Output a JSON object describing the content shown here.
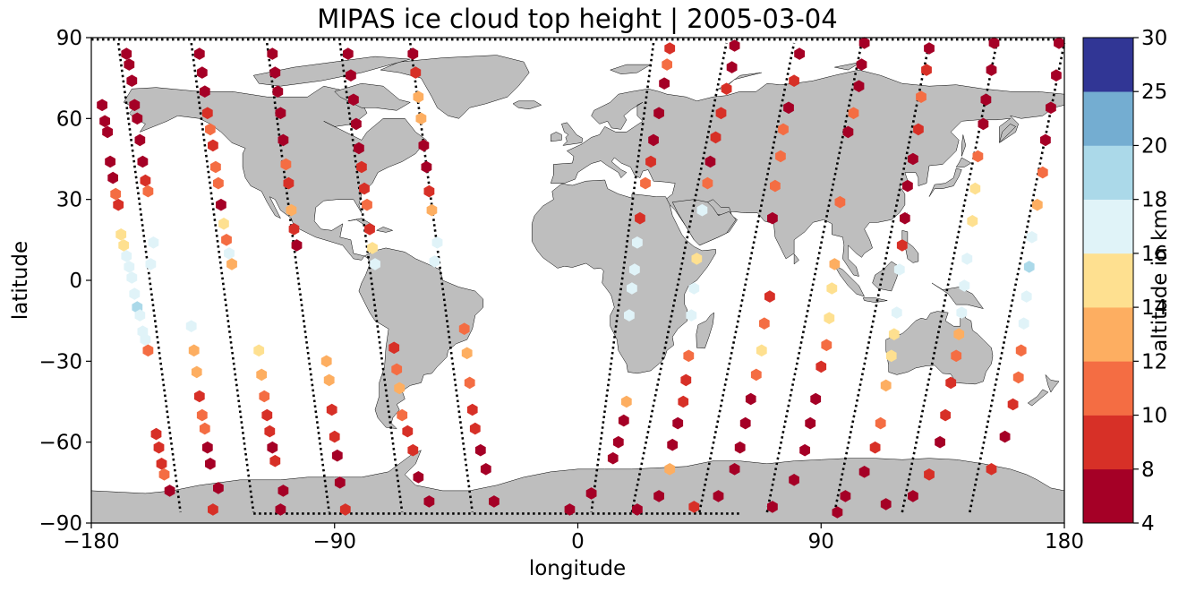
{
  "chart_data": {
    "type": "scatter",
    "title": "MIPAS ice cloud top height | 2005-03-04",
    "xlabel": "longitude",
    "ylabel": "latitude",
    "xlim": [
      -180,
      180
    ],
    "ylim": [
      -90,
      90
    ],
    "xticks": [
      -180,
      -90,
      0,
      90,
      180
    ],
    "xtick_labels": [
      "−180",
      "−90",
      "0",
      "90",
      "180"
    ],
    "yticks": [
      -90,
      -60,
      -30,
      0,
      30,
      60,
      90
    ],
    "ytick_labels": [
      "−90",
      "−60",
      "−30",
      "0",
      "30",
      "60",
      "90"
    ],
    "grid": false,
    "land_color": "#bebebe",
    "ocean_color": "#ffffff",
    "marker": "hexagon",
    "colorbar": {
      "label": "altitude in km",
      "bounds": [
        4,
        8,
        10,
        12,
        14,
        16,
        18,
        20,
        25,
        30
      ],
      "tick_labels": [
        "4",
        "8",
        "10",
        "12",
        "14",
        "16",
        "18",
        "20",
        "25",
        "30"
      ],
      "colors": [
        "#a50026",
        "#d73027",
        "#f46d43",
        "#fdae61",
        "#fee090",
        "#e0f3f8",
        "#abd9e9",
        "#74add1",
        "#313695"
      ]
    },
    "descending_tracks": [
      {
        "lon_north": -170,
        "lon_south": -147
      },
      {
        "lon_north": -143,
        "lon_south": -120
      },
      {
        "lon_north": -115,
        "lon_south": -92
      },
      {
        "lon_north": -88,
        "lon_south": -65
      },
      {
        "lon_north": -62,
        "lon_south": -39
      },
      {
        "lon_north": 28,
        "lon_south": 5
      }
    ],
    "ascending_tracks": [
      {
        "lon_south": 20,
        "lon_north": 55
      },
      {
        "lon_south": 45,
        "lon_north": 80
      },
      {
        "lon_south": 70,
        "lon_north": 105
      },
      {
        "lon_south": 95,
        "lon_north": 130
      },
      {
        "lon_south": 120,
        "lon_north": 155
      },
      {
        "lon_south": 145,
        "lon_north": 180
      }
    ],
    "points": [
      {
        "lon": -176,
        "lat": 65,
        "alt": 6
      },
      {
        "lon": -175,
        "lat": 59,
        "alt": 6
      },
      {
        "lon": -174,
        "lat": 55,
        "alt": 7
      },
      {
        "lon": -173,
        "lat": 44,
        "alt": 6
      },
      {
        "lon": -172,
        "lat": 38,
        "alt": 6
      },
      {
        "lon": -171,
        "lat": 32,
        "alt": 11
      },
      {
        "lon": -170,
        "lat": 28,
        "alt": 9
      },
      {
        "lon": -169,
        "lat": 17,
        "alt": 15
      },
      {
        "lon": -168,
        "lat": 13,
        "alt": 15
      },
      {
        "lon": -167,
        "lat": 9,
        "alt": 17
      },
      {
        "lon": -166,
        "lat": 5,
        "alt": 17
      },
      {
        "lon": -165,
        "lat": 1,
        "alt": 17
      },
      {
        "lon": -164,
        "lat": -5,
        "alt": 17
      },
      {
        "lon": -163,
        "lat": -10,
        "alt": 19
      },
      {
        "lon": -162,
        "lat": -13,
        "alt": 17
      },
      {
        "lon": -161,
        "lat": -19,
        "alt": 17
      },
      {
        "lon": -160,
        "lat": -22,
        "alt": 17
      },
      {
        "lon": -159,
        "lat": -26,
        "alt": 11
      },
      {
        "lon": -156,
        "lat": -57,
        "alt": 9
      },
      {
        "lon": -155,
        "lat": -62,
        "alt": 9
      },
      {
        "lon": -154,
        "lat": -68,
        "alt": 9
      },
      {
        "lon": -153,
        "lat": -72,
        "alt": 11
      },
      {
        "lon": -151,
        "lat": -78,
        "alt": 6
      },
      {
        "lon": -167,
        "lat": 84,
        "alt": 6
      },
      {
        "lon": -166,
        "lat": 80,
        "alt": 6
      },
      {
        "lon": -165,
        "lat": 74,
        "alt": 6
      },
      {
        "lon": -164,
        "lat": 65,
        "alt": 6
      },
      {
        "lon": -163,
        "lat": 60,
        "alt": 6
      },
      {
        "lon": -162,
        "lat": 52,
        "alt": 6
      },
      {
        "lon": -161,
        "lat": 44,
        "alt": 6
      },
      {
        "lon": -160,
        "lat": 37,
        "alt": 9
      },
      {
        "lon": -159,
        "lat": 33,
        "alt": 11
      },
      {
        "lon": -157,
        "lat": 14,
        "alt": 17
      },
      {
        "lon": -158,
        "lat": 6,
        "alt": 17
      },
      {
        "lon": -143,
        "lat": -17,
        "alt": 17
      },
      {
        "lon": -142,
        "lat": -26,
        "alt": 13
      },
      {
        "lon": -141,
        "lat": -34,
        "alt": 13
      },
      {
        "lon": -140,
        "lat": -43,
        "alt": 9
      },
      {
        "lon": -139,
        "lat": -50,
        "alt": 11
      },
      {
        "lon": -138,
        "lat": -55,
        "alt": 11
      },
      {
        "lon": -137,
        "lat": -62,
        "alt": 6
      },
      {
        "lon": -136,
        "lat": -68,
        "alt": 6
      },
      {
        "lon": -133,
        "lat": -77,
        "alt": 6
      },
      {
        "lon": -135,
        "lat": -85,
        "alt": 9
      },
      {
        "lon": -140,
        "lat": 84,
        "alt": 6
      },
      {
        "lon": -139,
        "lat": 77,
        "alt": 6
      },
      {
        "lon": -138,
        "lat": 70,
        "alt": 6
      },
      {
        "lon": -137,
        "lat": 62,
        "alt": 9
      },
      {
        "lon": -136,
        "lat": 56,
        "alt": 11
      },
      {
        "lon": -135,
        "lat": 50,
        "alt": 9
      },
      {
        "lon": -134,
        "lat": 42,
        "alt": 11
      },
      {
        "lon": -133,
        "lat": 36,
        "alt": 11
      },
      {
        "lon": -132,
        "lat": 28,
        "alt": 6
      },
      {
        "lon": -131,
        "lat": 21,
        "alt": 15
      },
      {
        "lon": -130,
        "lat": 15,
        "alt": 11
      },
      {
        "lon": -129,
        "lat": 10,
        "alt": 17
      },
      {
        "lon": -128,
        "lat": 6,
        "alt": 13
      },
      {
        "lon": -118,
        "lat": -26,
        "alt": 15
      },
      {
        "lon": -117,
        "lat": -35,
        "alt": 13
      },
      {
        "lon": -116,
        "lat": -43,
        "alt": 11
      },
      {
        "lon": -115,
        "lat": -50,
        "alt": 9
      },
      {
        "lon": -114,
        "lat": -56,
        "alt": 9
      },
      {
        "lon": -113,
        "lat": -62,
        "alt": 6
      },
      {
        "lon": -112,
        "lat": -67,
        "alt": 9
      },
      {
        "lon": -109,
        "lat": -78,
        "alt": 6
      },
      {
        "lon": -110,
        "lat": -85,
        "alt": 6
      },
      {
        "lon": -113,
        "lat": 84,
        "alt": 6
      },
      {
        "lon": -112,
        "lat": 77,
        "alt": 6
      },
      {
        "lon": -111,
        "lat": 70,
        "alt": 6
      },
      {
        "lon": -110,
        "lat": 62,
        "alt": 6
      },
      {
        "lon": -109,
        "lat": 52,
        "alt": 6
      },
      {
        "lon": -108,
        "lat": 43,
        "alt": 11
      },
      {
        "lon": -107,
        "lat": 36,
        "alt": 9
      },
      {
        "lon": -106,
        "lat": 26,
        "alt": 13
      },
      {
        "lon": -105,
        "lat": 19,
        "alt": 9
      },
      {
        "lon": -104,
        "lat": 13,
        "alt": 6
      },
      {
        "lon": -93,
        "lat": -30,
        "alt": 13
      },
      {
        "lon": -92,
        "lat": -37,
        "alt": 13
      },
      {
        "lon": -91,
        "lat": -48,
        "alt": 9
      },
      {
        "lon": -90,
        "lat": -58,
        "alt": 9
      },
      {
        "lon": -89,
        "lat": -65,
        "alt": 6
      },
      {
        "lon": -88,
        "lat": -75,
        "alt": 6
      },
      {
        "lon": -86,
        "lat": -85,
        "alt": 9
      },
      {
        "lon": -85,
        "lat": 84,
        "alt": 6
      },
      {
        "lon": -84,
        "lat": 76,
        "alt": 6
      },
      {
        "lon": -83,
        "lat": 67,
        "alt": 6
      },
      {
        "lon": -82,
        "lat": 58,
        "alt": 6
      },
      {
        "lon": -81,
        "lat": 49,
        "alt": 6
      },
      {
        "lon": -80,
        "lat": 42,
        "alt": 9
      },
      {
        "lon": -79,
        "lat": 34,
        "alt": 9
      },
      {
        "lon": -78,
        "lat": 28,
        "alt": 11
      },
      {
        "lon": -77,
        "lat": 19,
        "alt": 9
      },
      {
        "lon": -76,
        "lat": 12,
        "alt": 15
      },
      {
        "lon": -75,
        "lat": 6,
        "alt": 17
      },
      {
        "lon": -68,
        "lat": -25,
        "alt": 9
      },
      {
        "lon": -67,
        "lat": -33,
        "alt": 11
      },
      {
        "lon": -66,
        "lat": -40,
        "alt": 13
      },
      {
        "lon": -65,
        "lat": -50,
        "alt": 11
      },
      {
        "lon": -63,
        "lat": -56,
        "alt": 9
      },
      {
        "lon": -61,
        "lat": -63,
        "alt": 9
      },
      {
        "lon": -59,
        "lat": -73,
        "alt": 6
      },
      {
        "lon": -55,
        "lat": -82,
        "alt": 6
      },
      {
        "lon": -61,
        "lat": 84,
        "alt": 6
      },
      {
        "lon": -60,
        "lat": 77,
        "alt": 9
      },
      {
        "lon": -59,
        "lat": 68,
        "alt": 13
      },
      {
        "lon": -58,
        "lat": 60,
        "alt": 13
      },
      {
        "lon": -57,
        "lat": 50,
        "alt": 6
      },
      {
        "lon": -56,
        "lat": 42,
        "alt": 6
      },
      {
        "lon": -55,
        "lat": 33,
        "alt": 9
      },
      {
        "lon": -54,
        "lat": 26,
        "alt": 13
      },
      {
        "lon": -52,
        "lat": 14,
        "alt": 17
      },
      {
        "lon": -53,
        "lat": 7,
        "alt": 17
      },
      {
        "lon": -42,
        "lat": -18,
        "alt": 11
      },
      {
        "lon": -41,
        "lat": -27,
        "alt": 13
      },
      {
        "lon": -40,
        "lat": -38,
        "alt": 11
      },
      {
        "lon": -39,
        "lat": -48,
        "alt": 9
      },
      {
        "lon": -38,
        "lat": -55,
        "alt": 9
      },
      {
        "lon": -36,
        "lat": -63,
        "alt": 6
      },
      {
        "lon": -34,
        "lat": -70,
        "alt": 6
      },
      {
        "lon": -31,
        "lat": -82,
        "alt": 6
      },
      {
        "lon": 34,
        "lat": 86,
        "alt": 9
      },
      {
        "lon": 33,
        "lat": 80,
        "alt": 11
      },
      {
        "lon": 32,
        "lat": 73,
        "alt": 6
      },
      {
        "lon": 30,
        "lat": 62,
        "alt": 6
      },
      {
        "lon": 28,
        "lat": 52,
        "alt": 6
      },
      {
        "lon": 27,
        "lat": 44,
        "alt": 9
      },
      {
        "lon": 25,
        "lat": 36,
        "alt": 11
      },
      {
        "lon": 23,
        "lat": 23,
        "alt": 9
      },
      {
        "lon": 22,
        "lat": 14,
        "alt": 17
      },
      {
        "lon": 21,
        "lat": 4,
        "alt": 17
      },
      {
        "lon": 20,
        "lat": -3,
        "alt": 17
      },
      {
        "lon": 19,
        "lat": -13,
        "alt": 17
      },
      {
        "lon": 18,
        "lat": -45,
        "alt": 13
      },
      {
        "lon": 17,
        "lat": -52,
        "alt": 6
      },
      {
        "lon": 15,
        "lat": -60,
        "alt": 6
      },
      {
        "lon": 13,
        "lat": -66,
        "alt": 6
      },
      {
        "lon": 5,
        "lat": -79,
        "alt": 6
      },
      {
        "lon": -3,
        "lat": -85,
        "alt": 6
      },
      {
        "lon": 58,
        "lat": 87,
        "alt": 6
      },
      {
        "lon": 57,
        "lat": 79,
        "alt": 6
      },
      {
        "lon": 55,
        "lat": 71,
        "alt": 9
      },
      {
        "lon": 53,
        "lat": 62,
        "alt": 9
      },
      {
        "lon": 51,
        "lat": 53,
        "alt": 9
      },
      {
        "lon": 49,
        "lat": 44,
        "alt": 6
      },
      {
        "lon": 48,
        "lat": 36,
        "alt": 11
      },
      {
        "lon": 46,
        "lat": 26,
        "alt": 17
      },
      {
        "lon": 44,
        "lat": 8,
        "alt": 15
      },
      {
        "lon": 43,
        "lat": -3,
        "alt": 17
      },
      {
        "lon": 42,
        "lat": -13,
        "alt": 17
      },
      {
        "lon": 41,
        "lat": -28,
        "alt": 11
      },
      {
        "lon": 40,
        "lat": -37,
        "alt": 9
      },
      {
        "lon": 39,
        "lat": -45,
        "alt": 9
      },
      {
        "lon": 37,
        "lat": -53,
        "alt": 6
      },
      {
        "lon": 35,
        "lat": -61,
        "alt": 6
      },
      {
        "lon": 34,
        "lat": -70,
        "alt": 13
      },
      {
        "lon": 30,
        "lat": -80,
        "alt": 6
      },
      {
        "lon": 22,
        "lat": -85,
        "alt": 6
      },
      {
        "lon": 82,
        "lat": 84,
        "alt": 6
      },
      {
        "lon": 80,
        "lat": 74,
        "alt": 9
      },
      {
        "lon": 78,
        "lat": 64,
        "alt": 6
      },
      {
        "lon": 76,
        "lat": 56,
        "alt": 11
      },
      {
        "lon": 75,
        "lat": 46,
        "alt": 11
      },
      {
        "lon": 73,
        "lat": 35,
        "alt": 11
      },
      {
        "lon": 72,
        "lat": 23,
        "alt": 6
      },
      {
        "lon": 71,
        "lat": -6,
        "alt": 9
      },
      {
        "lon": 69,
        "lat": -16,
        "alt": 11
      },
      {
        "lon": 68,
        "lat": -26,
        "alt": 15
      },
      {
        "lon": 66,
        "lat": -35,
        "alt": 11
      },
      {
        "lon": 64,
        "lat": -44,
        "alt": 6
      },
      {
        "lon": 62,
        "lat": -53,
        "alt": 6
      },
      {
        "lon": 60,
        "lat": -62,
        "alt": 6
      },
      {
        "lon": 58,
        "lat": -70,
        "alt": 6
      },
      {
        "lon": 52,
        "lat": -80,
        "alt": 6
      },
      {
        "lon": 43,
        "lat": -84,
        "alt": 9
      },
      {
        "lon": 106,
        "lat": 88,
        "alt": 6
      },
      {
        "lon": 105,
        "lat": 80,
        "alt": 6
      },
      {
        "lon": 104,
        "lat": 72,
        "alt": 6
      },
      {
        "lon": 102,
        "lat": 62,
        "alt": 11
      },
      {
        "lon": 100,
        "lat": 55,
        "alt": 6
      },
      {
        "lon": 97,
        "lat": 29,
        "alt": 11
      },
      {
        "lon": 95,
        "lat": 6,
        "alt": 13
      },
      {
        "lon": 94,
        "lat": -3,
        "alt": 15
      },
      {
        "lon": 93,
        "lat": -14,
        "alt": 15
      },
      {
        "lon": 92,
        "lat": -24,
        "alt": 11
      },
      {
        "lon": 90,
        "lat": -32,
        "alt": 9
      },
      {
        "lon": 88,
        "lat": -44,
        "alt": 6
      },
      {
        "lon": 86,
        "lat": -53,
        "alt": 6
      },
      {
        "lon": 84,
        "lat": -63,
        "alt": 6
      },
      {
        "lon": 80,
        "lat": -74,
        "alt": 6
      },
      {
        "lon": 72,
        "lat": -84,
        "alt": 6
      },
      {
        "lon": 130,
        "lat": 86,
        "alt": 6
      },
      {
        "lon": 129,
        "lat": 78,
        "alt": 9
      },
      {
        "lon": 127,
        "lat": 68,
        "alt": 11
      },
      {
        "lon": 126,
        "lat": 56,
        "alt": 9
      },
      {
        "lon": 124,
        "lat": 45,
        "alt": 6
      },
      {
        "lon": 122,
        "lat": 35,
        "alt": 6
      },
      {
        "lon": 121,
        "lat": 23,
        "alt": 6
      },
      {
        "lon": 120,
        "lat": 13,
        "alt": 9
      },
      {
        "lon": 119,
        "lat": 4,
        "alt": 17
      },
      {
        "lon": 118,
        "lat": -12,
        "alt": 17
      },
      {
        "lon": 117,
        "lat": -20,
        "alt": 15
      },
      {
        "lon": 116,
        "lat": -28,
        "alt": 15
      },
      {
        "lon": 114,
        "lat": -39,
        "alt": 13
      },
      {
        "lon": 112,
        "lat": -53,
        "alt": 11
      },
      {
        "lon": 110,
        "lat": -62,
        "alt": 9
      },
      {
        "lon": 106,
        "lat": -71,
        "alt": 6
      },
      {
        "lon": 99,
        "lat": -80,
        "alt": 6
      },
      {
        "lon": 96,
        "lat": -86,
        "alt": 6
      },
      {
        "lon": 154,
        "lat": 88,
        "alt": 6
      },
      {
        "lon": 153,
        "lat": 78,
        "alt": 6
      },
      {
        "lon": 151,
        "lat": 67,
        "alt": 6
      },
      {
        "lon": 150,
        "lat": 58,
        "alt": 6
      },
      {
        "lon": 148,
        "lat": 46,
        "alt": 11
      },
      {
        "lon": 147,
        "lat": 34,
        "alt": 15
      },
      {
        "lon": 146,
        "lat": 22,
        "alt": 15
      },
      {
        "lon": 144,
        "lat": 8,
        "alt": 17
      },
      {
        "lon": 143,
        "lat": -2,
        "alt": 17
      },
      {
        "lon": 142,
        "lat": -12,
        "alt": 17
      },
      {
        "lon": 141,
        "lat": -20,
        "alt": 13
      },
      {
        "lon": 140,
        "lat": -28,
        "alt": 11
      },
      {
        "lon": 138,
        "lat": -38,
        "alt": 9
      },
      {
        "lon": 136,
        "lat": -50,
        "alt": 9
      },
      {
        "lon": 134,
        "lat": -60,
        "alt": 6
      },
      {
        "lon": 130,
        "lat": -72,
        "alt": 9
      },
      {
        "lon": 124,
        "lat": -80,
        "alt": 6
      },
      {
        "lon": 114,
        "lat": -83,
        "alt": 6
      },
      {
        "lon": 178,
        "lat": 88,
        "alt": 6
      },
      {
        "lon": 177,
        "lat": 76,
        "alt": 6
      },
      {
        "lon": 175,
        "lat": 64,
        "alt": 6
      },
      {
        "lon": 173,
        "lat": 52,
        "alt": 6
      },
      {
        "lon": 172,
        "lat": 40,
        "alt": 11
      },
      {
        "lon": 170,
        "lat": 28,
        "alt": 13
      },
      {
        "lon": 168,
        "lat": 16,
        "alt": 17
      },
      {
        "lon": 167,
        "lat": 5,
        "alt": 19
      },
      {
        "lon": 166,
        "lat": -6,
        "alt": 17
      },
      {
        "lon": 165,
        "lat": -16,
        "alt": 17
      },
      {
        "lon": 164,
        "lat": -26,
        "alt": 11
      },
      {
        "lon": 163,
        "lat": -36,
        "alt": 11
      },
      {
        "lon": 161,
        "lat": -46,
        "alt": 9
      },
      {
        "lon": 158,
        "lat": -58,
        "alt": 6
      },
      {
        "lon": 153,
        "lat": -70,
        "alt": 9
      }
    ]
  }
}
